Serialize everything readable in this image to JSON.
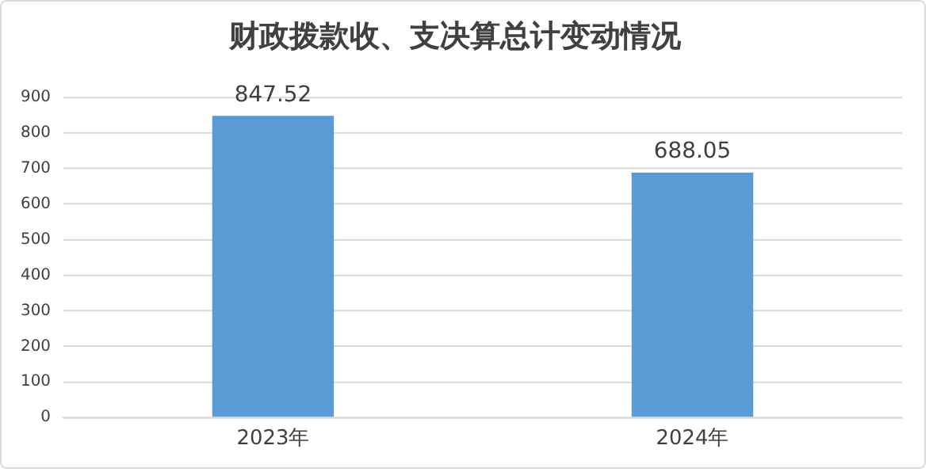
{
  "chart_data": {
    "type": "bar",
    "title": "财政拨款收、支决算总计变动情况",
    "categories": [
      "2023年",
      "2024年"
    ],
    "values": [
      847.52,
      688.05
    ],
    "color": "#5b9bd5",
    "ylim": [
      0,
      900
    ],
    "yticks": [
      0,
      100,
      200,
      300,
      400,
      500,
      600,
      700,
      800,
      900
    ],
    "grid": "y",
    "data_labels": true
  }
}
